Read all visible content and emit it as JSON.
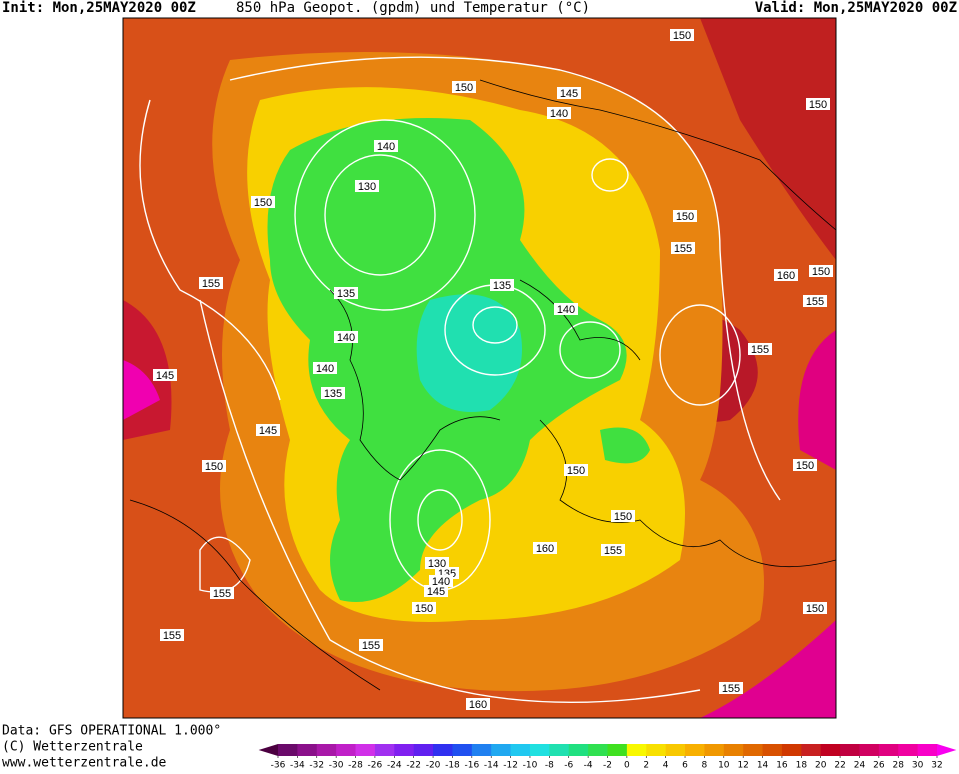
{
  "header": {
    "init": "Init: Mon,25MAY2020 00Z",
    "title": "850 hPa Geopot. (gpdm) und Temperatur (°C)",
    "valid": "Valid: Mon,25MAY2020 00Z"
  },
  "footer": {
    "data": "Data: GFS OPERATIONAL 1.000°",
    "copyright": "(C) Wetterzentrale",
    "url": "www.wetterzentrale.de"
  },
  "contour_labels": [
    150,
    150,
    145,
    140,
    150,
    140,
    130,
    150,
    150,
    155,
    160,
    150,
    155,
    135,
    135,
    155,
    140,
    140,
    155,
    145,
    140,
    135,
    145,
    150,
    150,
    150,
    150,
    160,
    155,
    130,
    135,
    140,
    145,
    155,
    150,
    150,
    155,
    155,
    155,
    160
  ],
  "colorbar": {
    "ticks": [
      -36,
      -34,
      -32,
      -30,
      -28,
      -26,
      -24,
      -22,
      -20,
      -18,
      -16,
      -14,
      -12,
      -10,
      -8,
      -6,
      -4,
      -2,
      0,
      2,
      4,
      6,
      8,
      10,
      12,
      14,
      16,
      18,
      20,
      22,
      24,
      26,
      28,
      30,
      32
    ],
    "colors": [
      "#4b0040",
      "#6a0a6a",
      "#8a108a",
      "#a818a8",
      "#c020c8",
      "#d030e8",
      "#a030f0",
      "#8020f0",
      "#6020f0",
      "#3030f0",
      "#2050f0",
      "#2080f0",
      "#20a8f0",
      "#20c8f0",
      "#20e0e0",
      "#20e0b0",
      "#20e080",
      "#30e050",
      "#40e020",
      "#f8f800",
      "#f8e000",
      "#f8c800",
      "#f8b000",
      "#f09800",
      "#e88000",
      "#e06800",
      "#d85000",
      "#d03800",
      "#c82020",
      "#c00020",
      "#c00040",
      "#d00060",
      "#e00080",
      "#f000a0",
      "#f800c8",
      "#f800f0"
    ]
  }
}
